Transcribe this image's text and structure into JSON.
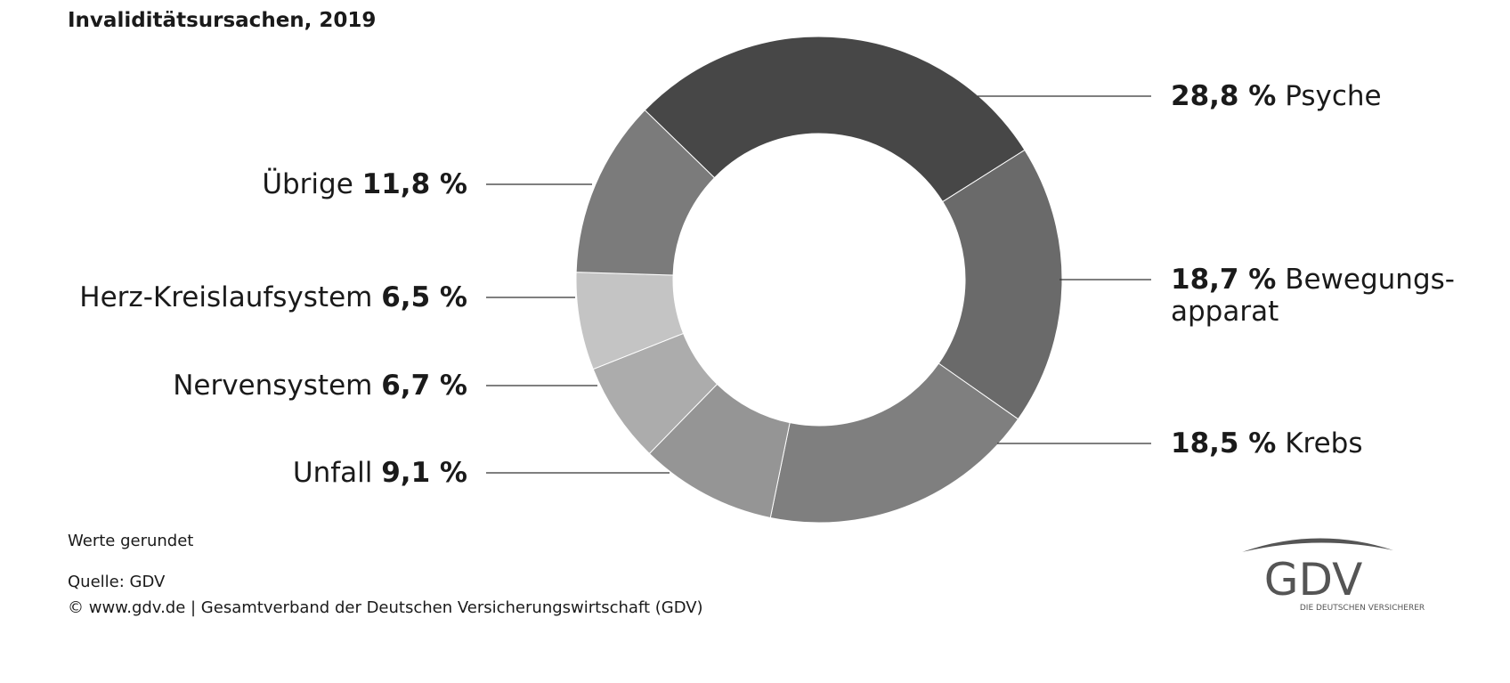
{
  "chart_data": {
    "type": "pie",
    "donut": true,
    "title": "Invaliditätsursachen, 2019",
    "categories": [
      "Psyche",
      "Bewegungs-\napparat",
      "Krebs",
      "Unfall",
      "Nervensystem",
      "Herz-Kreislaufsystem",
      "Übrige"
    ],
    "values": [
      28.8,
      18.7,
      18.5,
      9.1,
      6.7,
      6.5,
      11.8
    ],
    "value_labels": [
      "28,8 %",
      "18,7 %",
      "18,5 %",
      "9,1 %",
      "6,7 %",
      "6,5 %",
      "11,8 %"
    ],
    "colors": [
      "#474747",
      "#6a6a6a",
      "#7f7f7f",
      "#959595",
      "#acacac",
      "#c4c4c4",
      "#7b7b7b"
    ],
    "note": "Werte gerundet",
    "source": "Quelle: GDV",
    "copyright": "© www.gdv.de | Gesamtverband der Deutschen Versicherungswirtschaft (GDV)"
  },
  "logo": {
    "name": "GDV",
    "tagline": "DIE DEUTSCHEN VERSICHERER"
  }
}
